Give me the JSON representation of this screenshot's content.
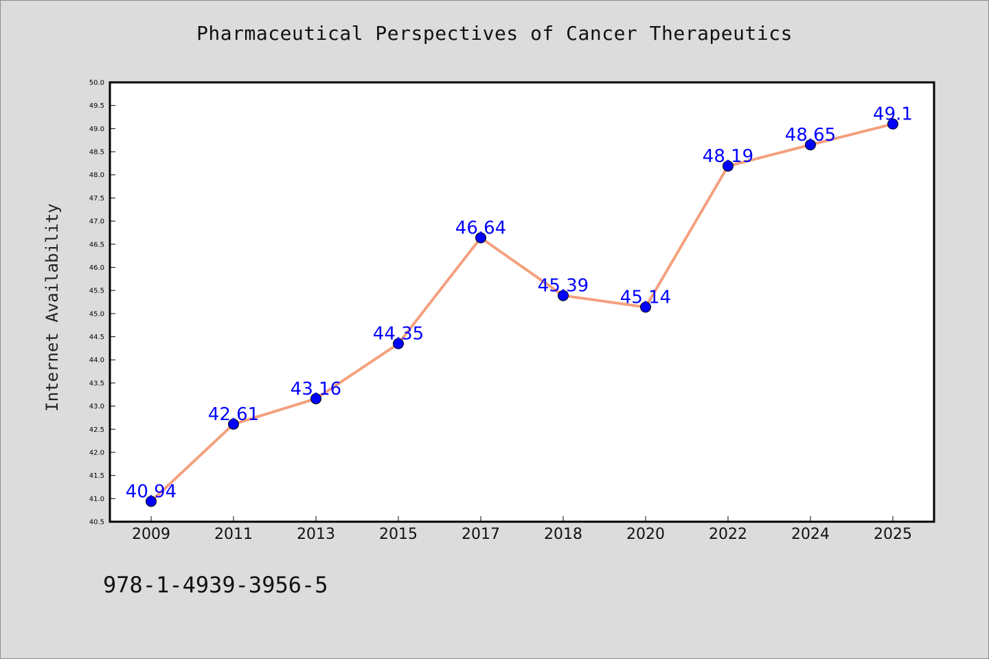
{
  "chart_data": {
    "type": "line",
    "title": "Pharmaceutical Perspectives of Cancer Therapeutics",
    "ylabel": "Internet Availability",
    "xlabel": "",
    "categories": [
      "2009",
      "2011",
      "2013",
      "2015",
      "2017",
      "2018",
      "2020",
      "2022",
      "2024",
      "2025"
    ],
    "series": [
      {
        "values": [
          40.94,
          42.61,
          43.16,
          44.35,
          46.64,
          45.39,
          45.14,
          48.19,
          48.65,
          49.1
        ],
        "labels": [
          "40.94",
          "42.61",
          "43.16",
          "44.35",
          "46.64",
          "45.39",
          "45.14",
          "48.19",
          "48.65",
          "49.1"
        ],
        "line_color": "#f4a07e",
        "marker_color": "#0000ff",
        "label_color": "#0000ff"
      }
    ],
    "ylim": [
      40.5,
      50.0
    ],
    "yticks": [
      "40.5",
      "41.0",
      "41.5",
      "42.0",
      "42.5",
      "43.0",
      "43.5",
      "44.0",
      "44.5",
      "45.0",
      "45.5",
      "46.0",
      "46.5",
      "47.0",
      "47.5",
      "48.0",
      "48.5",
      "49.0",
      "49.5",
      "50.0"
    ],
    "grid": false,
    "legend": "none"
  },
  "footer_text": "978-1-4939-3956-5",
  "colors": {
    "background": "#dcdcdc",
    "plot_area": "#ffffff",
    "line": "#f4a07e",
    "marker": "#0000ff",
    "data_label": "#0000ff"
  }
}
